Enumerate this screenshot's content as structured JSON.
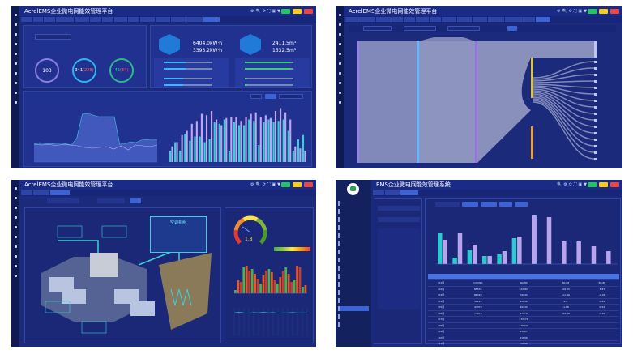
{
  "header_chip_colors": [
    "#22c55e",
    "#facc15",
    "#ef4444"
  ],
  "panels": {
    "tl": {
      "title": "AcrelEMS企业微电网能效管理平台",
      "electric": {
        "today": "6404.0kW·h",
        "yesterday": "3393.2kW·h",
        "bar_fractions": [
          0.45,
          0.45,
          0.4,
          0.4
        ]
      },
      "water": {
        "today": "2411.5m³",
        "yesterday": "1532.5m³",
        "bar_fractions": [
          0.95,
          0.95,
          0.05,
          0.05
        ]
      },
      "rings": [
        {
          "value": "103"
        },
        {
          "value": "341",
          "extra": "(228)"
        },
        {
          "value": "45",
          "extra": "(34)"
        }
      ],
      "area_series": [
        220,
        240,
        230,
        225,
        230,
        235,
        225,
        210,
        300,
        590,
        600,
        580,
        560,
        560,
        560,
        560,
        220,
        225,
        250,
        240,
        270,
        280,
        270,
        275
      ],
      "area_series2": [
        220,
        210,
        215,
        205,
        215,
        210,
        200,
        180,
        170,
        180,
        190,
        160,
        200,
        150,
        210,
        200,
        190,
        210
      ],
      "bar_series_a": [
        40,
        70,
        40,
        100,
        75,
        90,
        90,
        70,
        80,
        140,
        135,
        150,
        40,
        140,
        130,
        130,
        150,
        145,
        60,
        140,
        150,
        140,
        145,
        150,
        110,
        40,
        80,
        95
      ],
      "bar_series_b": [
        55,
        70,
        95,
        110,
        135,
        145,
        170,
        165,
        180,
        150,
        130,
        155,
        160,
        160,
        145,
        160,
        170,
        175,
        160,
        165,
        155,
        180,
        190,
        175,
        150,
        55,
        48,
        40
      ]
    },
    "tr": {
      "title": "AcrelEMS企业微电网能效管理平台"
    },
    "bl": {
      "title": "AcrelEMS企业微电网能效管理平台",
      "card_title": "空调机组",
      "gauge_value": "1.8",
      "gauge_fraction": 0.3,
      "bars": [
        10,
        40,
        35,
        80,
        85,
        70,
        75,
        60,
        45,
        30,
        55,
        70,
        75,
        65,
        40,
        30,
        50,
        70,
        80,
        60,
        35,
        40,
        85,
        80,
        20,
        25
      ],
      "line": [
        8,
        8.2,
        8,
        7.9,
        8.1,
        8,
        8.2,
        8,
        8.1,
        7.9,
        8,
        8,
        8.1,
        8,
        8,
        8
      ]
    },
    "br": {
      "title": "EMS企业微电网能效管理系统",
      "bars_a": [
        95,
        20,
        45,
        25,
        30,
        80,
        0,
        0,
        0,
        0,
        0,
        0
      ],
      "bars_b": [
        75,
        95,
        60,
        25,
        40,
        85,
        150,
        145,
        70,
        70,
        55,
        40
      ],
      "table": {
        "rows": [
          [
            "01月",
            "143390",
            "90280",
            "60.88",
            "60.88"
          ],
          [
            "02月",
            "86534",
            "122684",
            "-29.63",
            "3.87"
          ],
          [
            "03月",
            "86328",
            "74940",
            "-11.49",
            "-2.08"
          ],
          [
            "04月",
            "30124",
            "32046",
            "6.6",
            "0.84"
          ],
          [
            "05月",
            "47478",
            "49430",
            "-1.88",
            "0.52"
          ],
          [
            "06月",
            "73478",
            "97178",
            "-24.39",
            "-4.02"
          ],
          [
            "07月",
            "",
            "172176",
            "",
            ""
          ],
          [
            "08月",
            "",
            "170442",
            "",
            ""
          ],
          [
            "09月",
            "",
            "81107",
            "",
            ""
          ],
          [
            "10月",
            "",
            "81806",
            "",
            ""
          ],
          [
            "11月",
            "",
            "73298",
            "",
            ""
          ]
        ]
      }
    }
  }
}
